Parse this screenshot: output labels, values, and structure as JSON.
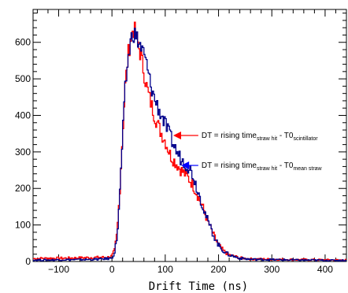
{
  "chart_data": {
    "type": "line",
    "title": "",
    "xlabel": "Drift Time (ns)",
    "ylabel": "",
    "xlim": [
      -148,
      440
    ],
    "ylim": [
      0,
      690
    ],
    "x_ticks": [
      -100,
      0,
      100,
      200,
      300,
      400
    ],
    "x_tick_labels": [
      "−100",
      "0",
      "100",
      "200",
      "300",
      "400"
    ],
    "y_ticks": [
      0,
      100,
      200,
      300,
      400,
      500,
      600
    ],
    "y_tick_labels": [
      "0",
      "100",
      "200",
      "300",
      "400",
      "500",
      "600"
    ],
    "grid": false,
    "legend": "none",
    "series": [
      {
        "color": "#ff0000",
        "x": [
          -148,
          -120,
          -90,
          -60,
          -30,
          -5,
          0,
          5,
          10,
          15,
          20,
          25,
          30,
          35,
          40,
          45,
          50,
          55,
          60,
          65,
          70,
          80,
          90,
          100,
          110,
          120,
          130,
          140,
          150,
          160,
          170,
          180,
          190,
          200,
          210,
          220,
          240,
          260,
          300,
          350,
          440
        ],
        "y": [
          8,
          9,
          9,
          10,
          11,
          12,
          15,
          30,
          80,
          200,
          350,
          480,
          560,
          610,
          640,
          620,
          590,
          560,
          520,
          480,
          450,
          400,
          360,
          330,
          290,
          270,
          250,
          235,
          215,
          185,
          150,
          110,
          75,
          45,
          28,
          18,
          10,
          7,
          6,
          5,
          4
        ]
      },
      {
        "color": "#00008b",
        "x": [
          -148,
          -120,
          -90,
          -60,
          -30,
          -5,
          0,
          5,
          10,
          15,
          20,
          25,
          30,
          35,
          40,
          45,
          50,
          55,
          60,
          65,
          70,
          80,
          90,
          100,
          110,
          120,
          130,
          140,
          150,
          160,
          170,
          180,
          190,
          200,
          210,
          220,
          240,
          260,
          300,
          350,
          440
        ],
        "y": [
          4,
          4,
          5,
          5,
          6,
          8,
          10,
          25,
          70,
          190,
          340,
          470,
          550,
          600,
          630,
          615,
          600,
          585,
          565,
          540,
          500,
          445,
          410,
          375,
          340,
          305,
          280,
          265,
          245,
          200,
          155,
          110,
          75,
          45,
          28,
          18,
          9,
          6,
          5,
          4,
          3
        ]
      }
    ],
    "annotations": [
      {
        "main": "DT = rising time",
        "sub1": "straw hit",
        "mid": " - T0",
        "sub2": "scintillator",
        "x": 165,
        "y": 345,
        "arrow_to_x": 115,
        "arrow_to_y": 345,
        "color": "#ff0000"
      },
      {
        "main": "DT = rising time",
        "sub1": "straw hit",
        "mid": " - T0",
        "sub2": "mean straw",
        "x": 165,
        "y": 263,
        "arrow_to_x": 130,
        "arrow_to_y": 263,
        "color": "#0000ff"
      }
    ]
  }
}
